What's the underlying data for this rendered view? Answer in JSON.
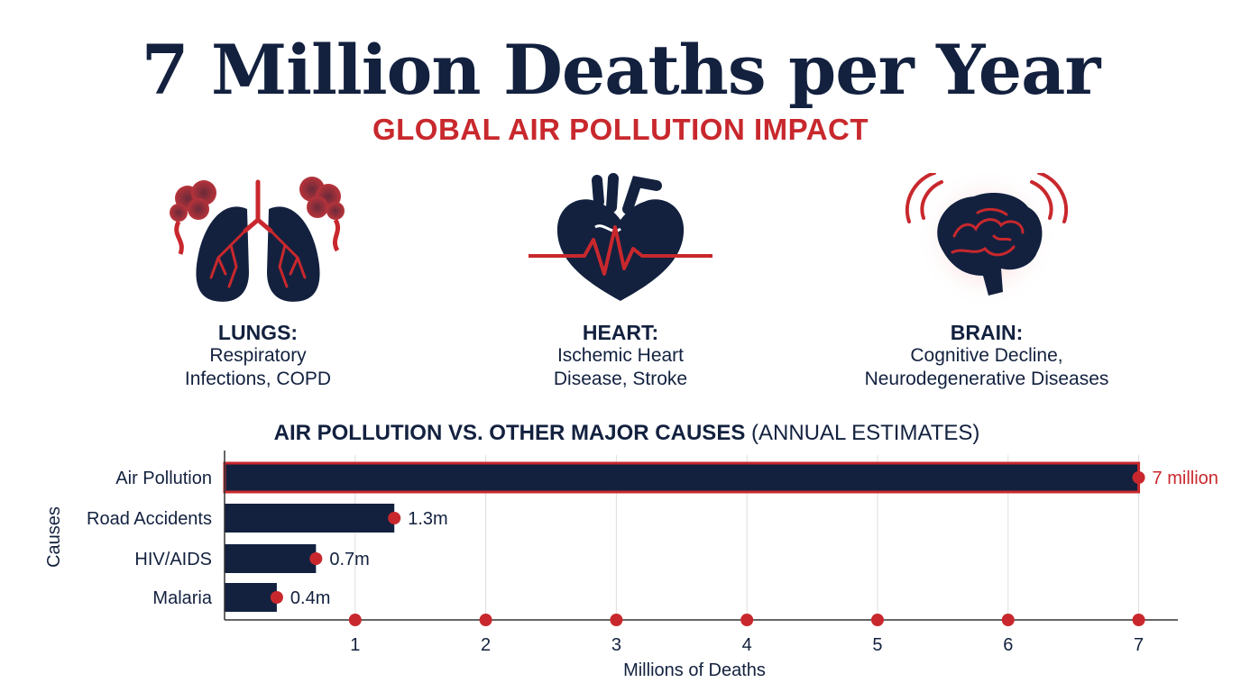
{
  "header": {
    "title": "7 Million Deaths per Year",
    "subtitle": "GLOBAL AIR POLLUTION IMPACT"
  },
  "organs": [
    {
      "name": "LUNGS:",
      "desc_line1": "Respiratory",
      "desc_line2": "Infections, COPD",
      "icon": "lungs-icon"
    },
    {
      "name": "HEART:",
      "desc_line1": "Ischemic Heart",
      "desc_line2": "Disease, Stroke",
      "icon": "heart-icon"
    },
    {
      "name": "BRAIN:",
      "desc_line1": "Cognitive Decline,",
      "desc_line2": "Neurodegenerative Diseases",
      "icon": "brain-icon"
    }
  ],
  "colors": {
    "navy": "#13213f",
    "red": "#c8282d",
    "grid": "#dddddd"
  },
  "chart_data": {
    "type": "bar",
    "orientation": "horizontal",
    "title_bold": "AIR POLLUTION VS. OTHER MAJOR CAUSES",
    "title_rest": " (ANNUAL ESTIMATES)",
    "xlabel": "Millions of Deaths",
    "ylabel": "Causes",
    "categories": [
      "Air Pollution",
      "Road Accidents",
      "HIV/AIDS",
      "Malaria"
    ],
    "values": [
      7,
      1.3,
      0.7,
      0.4
    ],
    "data_labels": [
      "7 million",
      "1.3m",
      "0.7m",
      "0.4m"
    ],
    "highlight_category": "Air Pollution",
    "xlim": [
      0,
      7.3
    ],
    "xticks": [
      1,
      2,
      3,
      4,
      5,
      6,
      7
    ],
    "grid": "vertical"
  }
}
